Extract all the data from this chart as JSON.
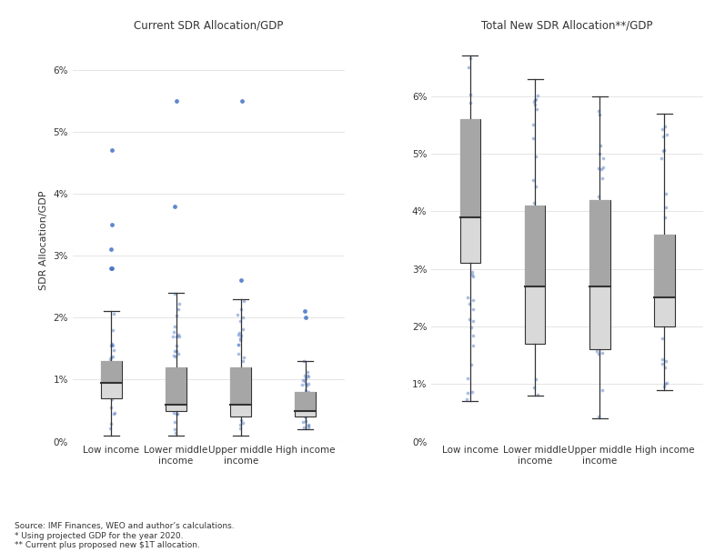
{
  "title_left": "Current SDR Allocation/GDP",
  "title_right": "Total New SDR Allocation**/GDP",
  "ylabel": "SDR Allocation/GDP",
  "categories": [
    "Low income",
    "Lower middle\nincome",
    "Upper middle\nincome",
    "High income"
  ],
  "background_color": "#ffffff",
  "footnotes": [
    "Source: IMF Finances, WEO and author’s calculations.",
    "* Using projected GDP for the year 2020.",
    "** Current plus proposed new $1T allocation."
  ],
  "left_boxes": {
    "Low income": {
      "whisker_low": 0.001,
      "q1": 0.007,
      "median": 0.0095,
      "q3": 0.013,
      "whisker_high": 0.021,
      "outliers_high": [
        0.028,
        0.028,
        0.031,
        0.035,
        0.047
      ]
    },
    "Lower middle\nincome": {
      "whisker_low": 0.001,
      "q1": 0.005,
      "median": 0.006,
      "q3": 0.012,
      "whisker_high": 0.024,
      "outliers_high": [
        0.038,
        0.055
      ]
    },
    "Upper middle\nincome": {
      "whisker_low": 0.001,
      "q1": 0.004,
      "median": 0.006,
      "q3": 0.012,
      "whisker_high": 0.023,
      "outliers_high": [
        0.026,
        0.055
      ]
    },
    "High income": {
      "whisker_low": 0.002,
      "q1": 0.004,
      "median": 0.005,
      "q3": 0.008,
      "whisker_high": 0.013,
      "outliers_high": [
        0.02,
        0.021
      ]
    }
  },
  "right_boxes": {
    "Low income": {
      "whisker_low": 0.007,
      "q1": 0.031,
      "median": 0.039,
      "q3": 0.056,
      "whisker_high": 0.067,
      "outliers_high": []
    },
    "Lower middle\nincome": {
      "whisker_low": 0.008,
      "q1": 0.017,
      "median": 0.027,
      "q3": 0.041,
      "whisker_high": 0.063,
      "outliers_high": []
    },
    "Upper middle\nincome": {
      "whisker_low": 0.004,
      "q1": 0.016,
      "median": 0.027,
      "q3": 0.042,
      "whisker_high": 0.06,
      "outliers_high": []
    },
    "High income": {
      "whisker_low": 0.009,
      "q1": 0.02,
      "median": 0.025,
      "q3": 0.036,
      "whisker_high": 0.057,
      "outliers_high": []
    }
  },
  "dot_color": "#4472c4",
  "box_light_color": "#d9d9d9",
  "box_dark_color": "#a6a6a6",
  "median_color": "#333333",
  "whisker_color": "#333333",
  "yticks": [
    0.0,
    0.01,
    0.02,
    0.03,
    0.04,
    0.05,
    0.06
  ],
  "yticklabels": [
    "0%",
    "1%",
    "2%",
    "3%",
    "4%",
    "5%",
    "6%"
  ],
  "ylim_left": [
    0,
    0.065
  ],
  "ylim_right": [
    0,
    0.07
  ]
}
